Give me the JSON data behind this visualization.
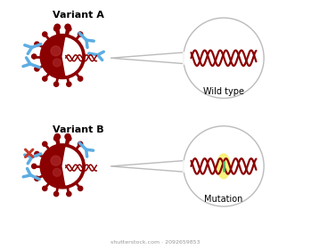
{
  "bg_color": "#ffffff",
  "variant_a_label": "Variant A",
  "variant_b_label": "Variant B",
  "wild_type_label": "Wild type",
  "mutation_label": "Mutation",
  "virus_color": "#8B0000",
  "virus_spot_color": "#b03030",
  "antibody_color": "#5dade2",
  "dna_color": "#8B0000",
  "mutation_highlight": "#f5f06a",
  "mutation_marker": "#4db86e",
  "circle_edge_color": "#bbbbbb",
  "watermark": "shutterstock.com · 2092659853",
  "cross_color": "#c0392b",
  "figsize": [
    3.49,
    2.8
  ],
  "dpi": 100
}
